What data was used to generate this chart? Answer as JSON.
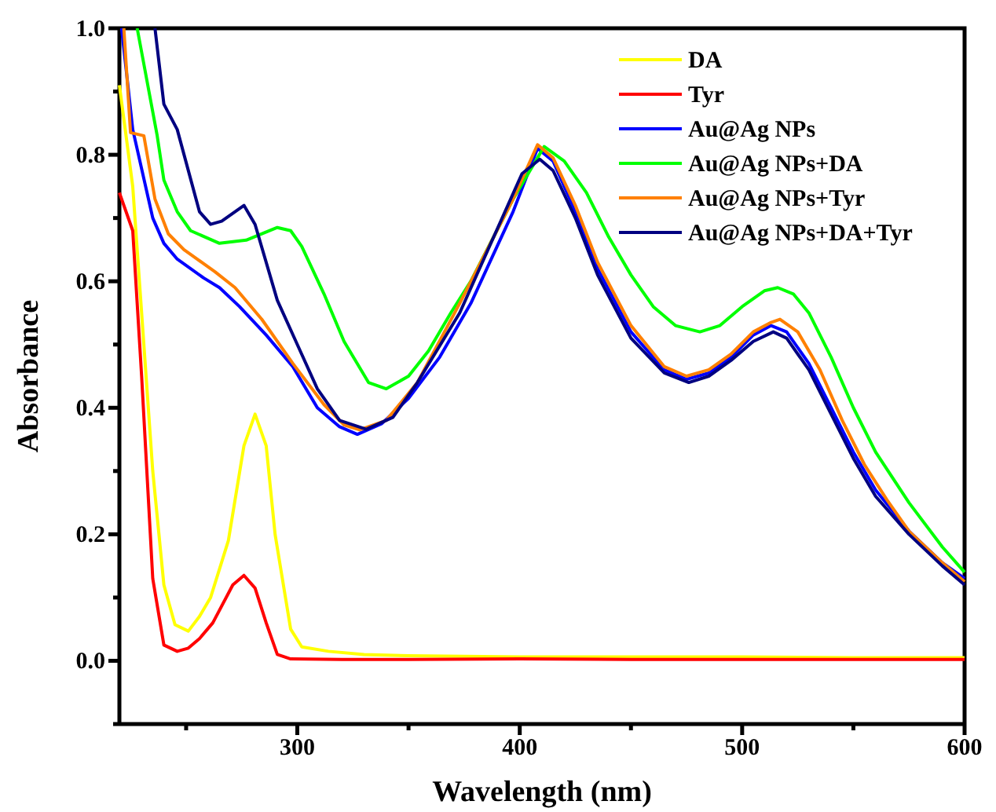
{
  "chart_data": {
    "type": "line",
    "xlabel": "Wavelength (nm)",
    "ylabel": "Absorbance",
    "xlim": [
      220,
      600
    ],
    "ylim": [
      -0.1,
      1.0
    ],
    "xticks": [
      {
        "value": 250,
        "label": null
      },
      300,
      {
        "value": 350,
        "label": null
      },
      400,
      {
        "value": 450,
        "label": null
      },
      500,
      {
        "value": 550,
        "label": null
      },
      600
    ],
    "yticks": [
      {
        "value": -0.1,
        "label": null
      },
      {
        "value": 0,
        "label": "0.0"
      },
      {
        "value": 0.1,
        "label": null
      },
      0.2,
      {
        "value": 0.3,
        "label": null
      },
      0.4,
      {
        "value": 0.5,
        "label": null
      },
      0.6,
      {
        "value": 0.7,
        "label": null
      },
      0.8,
      {
        "value": 0.9,
        "label": null
      },
      {
        "value": 1.0,
        "label": "1.0"
      }
    ],
    "grid": false,
    "legend": "top right",
    "marker": "none",
    "line_style": "solid",
    "series": [
      {
        "name": "DA",
        "color": "#ffff00",
        "x": [
          220,
          226,
          230,
          235,
          240,
          245,
          251,
          256,
          261,
          269,
          276,
          281,
          286,
          290,
          297,
          302,
          314,
          330,
          350,
          400,
          450,
          500,
          550,
          600
        ],
        "values": [
          0.91,
          0.75,
          0.55,
          0.3,
          0.12,
          0.057,
          0.047,
          0.07,
          0.1,
          0.19,
          0.34,
          0.39,
          0.34,
          0.2,
          0.05,
          0.022,
          0.015,
          0.01,
          0.008,
          0.006,
          0.006,
          0.006,
          0.005,
          0.005
        ]
      },
      {
        "name": "Tyr",
        "color": "#ff0000",
        "x": [
          220,
          226,
          230,
          235,
          240,
          246,
          251,
          256,
          262,
          271,
          276,
          281,
          286,
          291,
          297,
          320,
          350,
          400,
          450,
          500,
          550,
          600
        ],
        "values": [
          0.74,
          0.68,
          0.45,
          0.13,
          0.025,
          0.015,
          0.02,
          0.035,
          0.06,
          0.12,
          0.135,
          0.115,
          0.06,
          0.01,
          0.003,
          0.002,
          0.002,
          0.003,
          0.002,
          0.002,
          0.002,
          0.002
        ]
      },
      {
        "name": "Au@Ag NPs",
        "color": "#0000ff",
        "x": [
          221,
          226,
          235,
          240,
          246,
          258,
          265,
          274,
          286,
          298,
          309,
          319,
          327,
          338,
          350,
          364,
          378,
          397,
          408,
          415,
          425,
          435,
          450,
          465,
          475,
          485,
          495,
          505,
          513,
          520,
          530,
          540,
          550,
          560,
          575,
          590,
          600
        ],
        "values": [
          1.0,
          0.84,
          0.7,
          0.66,
          0.635,
          0.605,
          0.59,
          0.56,
          0.515,
          0.465,
          0.4,
          0.37,
          0.358,
          0.375,
          0.415,
          0.48,
          0.565,
          0.71,
          0.81,
          0.79,
          0.71,
          0.62,
          0.52,
          0.46,
          0.445,
          0.455,
          0.48,
          0.515,
          0.53,
          0.52,
          0.47,
          0.4,
          0.33,
          0.27,
          0.205,
          0.155,
          0.13
        ]
      },
      {
        "name": "Au@Ag NPs+DA",
        "color": "#00ff00",
        "x": [
          228,
          237,
          240,
          246,
          252,
          265,
          277,
          291,
          297,
          302,
          312,
          321,
          332,
          340,
          350,
          359,
          369,
          378,
          397,
          411,
          420,
          430,
          440,
          450,
          460,
          470,
          481,
          490,
          500,
          510,
          516,
          523,
          530,
          540,
          550,
          560,
          575,
          590,
          600
        ],
        "values": [
          1.0,
          0.83,
          0.76,
          0.71,
          0.68,
          0.66,
          0.665,
          0.685,
          0.68,
          0.655,
          0.58,
          0.505,
          0.44,
          0.43,
          0.45,
          0.49,
          0.55,
          0.6,
          0.73,
          0.813,
          0.79,
          0.74,
          0.67,
          0.61,
          0.56,
          0.53,
          0.52,
          0.53,
          0.56,
          0.585,
          0.59,
          0.58,
          0.55,
          0.48,
          0.4,
          0.33,
          0.25,
          0.18,
          0.14
        ]
      },
      {
        "name": "Au@Ag NPs+Tyr",
        "color": "#ff8000",
        "x": [
          222,
          225,
          231,
          236,
          242,
          249,
          263,
          272,
          284,
          298,
          312,
          321,
          328,
          340,
          354,
          373,
          397,
          408,
          415,
          425,
          435,
          450,
          465,
          475,
          485,
          495,
          505,
          513,
          517,
          525,
          535,
          545,
          555,
          565,
          575,
          590,
          600
        ],
        "values": [
          1.0,
          0.835,
          0.83,
          0.73,
          0.675,
          0.65,
          0.615,
          0.59,
          0.54,
          0.47,
          0.405,
          0.373,
          0.365,
          0.38,
          0.44,
          0.565,
          0.73,
          0.816,
          0.795,
          0.72,
          0.63,
          0.53,
          0.465,
          0.45,
          0.46,
          0.485,
          0.52,
          0.535,
          0.54,
          0.52,
          0.46,
          0.38,
          0.31,
          0.255,
          0.205,
          0.155,
          0.125
        ]
      },
      {
        "name": "Au@Ag NPs+DA+Tyr",
        "color": "#000080",
        "x": [
          236,
          240,
          246,
          256,
          261,
          266,
          276,
          281,
          291,
          300,
          309,
          319,
          331,
          343,
          354,
          373,
          401,
          409,
          415,
          425,
          435,
          450,
          465,
          476,
          485,
          495,
          505,
          514,
          520,
          530,
          540,
          550,
          560,
          575,
          590,
          600
        ],
        "values": [
          1.0,
          0.88,
          0.84,
          0.71,
          0.69,
          0.695,
          0.72,
          0.69,
          0.57,
          0.5,
          0.43,
          0.38,
          0.366,
          0.385,
          0.44,
          0.55,
          0.77,
          0.793,
          0.775,
          0.7,
          0.61,
          0.51,
          0.455,
          0.44,
          0.45,
          0.475,
          0.505,
          0.52,
          0.51,
          0.46,
          0.39,
          0.32,
          0.26,
          0.2,
          0.15,
          0.12
        ]
      }
    ]
  }
}
